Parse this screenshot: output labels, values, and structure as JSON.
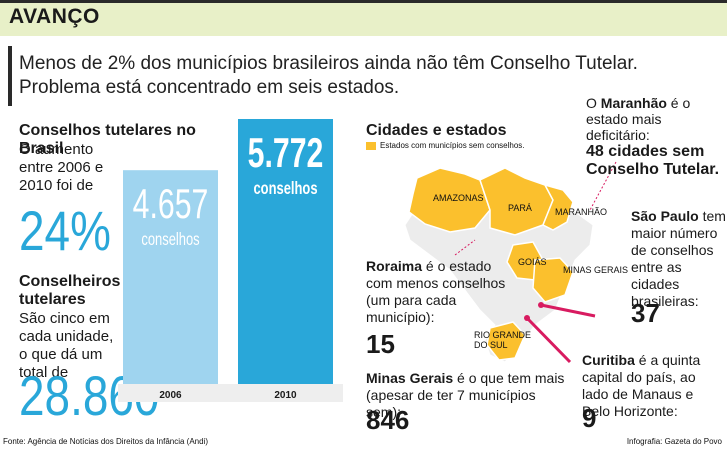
{
  "header": {
    "title": "AVANÇO"
  },
  "intro": "Menos de 2% dos municípios brasileiros ainda não têm Conselho Tutelar. Problema está concentrado em seis estados.",
  "left": {
    "title": "Conselhos tutelares no Brasil",
    "text": "O aumento entre 2006 e 2010 foi de",
    "percent": "24%",
    "title2": "Conselheiros tutelares",
    "text2": "São cinco em cada unidade, o que dá um total de",
    "total": "28.860"
  },
  "chart_data": {
    "type": "bar",
    "categories": [
      "2006",
      "2010"
    ],
    "values": [
      4657,
      5772
    ],
    "value_labels": [
      "4.657",
      "5.772"
    ],
    "unit_label": "conselhos",
    "colors": {
      "2006": "#9fd4ef",
      "2010": "#29a7d9",
      "axis_band": "#eeeeee"
    }
  },
  "map": {
    "title": "Cidades e estados",
    "legend": "Estados com municípios sem conselhos.",
    "highlight_color": "#fbc02d",
    "base_color": "#ececec",
    "states": [
      "AMAZONAS",
      "PARÁ",
      "MARANHÃO",
      "GOIÁS",
      "MINAS GERAIS",
      "RIO GRANDE DO SUL"
    ]
  },
  "notes": {
    "maranhao": {
      "bold": "Maranhão",
      "prefix": "O ",
      "text": " é o estado mais deficitário:",
      "highlight": "48 cidades sem Conselho Tutelar."
    },
    "sao_paulo": {
      "bold": "São Paulo",
      "text": " tem maior número de conselhos entre as cidades brasileiras:",
      "value": "37"
    },
    "roraima": {
      "bold": "Roraima",
      "text": " é o estado com menos conselhos (um para cada município):",
      "value": "15"
    },
    "minas": {
      "bold": "Minas Gerais",
      "text": " é o que tem mais (apesar de ter 7 municípios sem):",
      "value": "846"
    },
    "curitiba": {
      "bold": "Curitiba",
      "text": " é a quinta capital do país, ao lado de Manaus e Belo Horizonte:",
      "value": "9"
    }
  },
  "footer": {
    "source": "Fonte: Agência de Notícias dos Direitos da Infância (Andi)",
    "credit": "Infografia: Gazeta do Povo"
  }
}
